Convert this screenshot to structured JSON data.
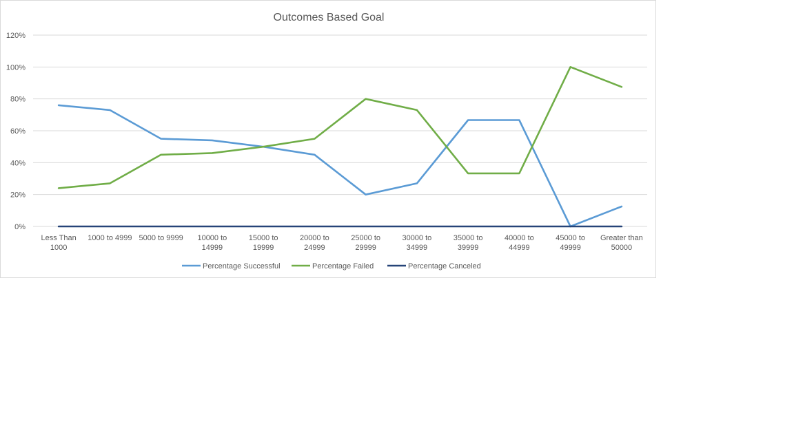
{
  "chart_data": {
    "type": "line",
    "title": "Outcomes Based Goal",
    "xlabel": "",
    "ylabel": "",
    "categories": [
      [
        "Less Than",
        "1000"
      ],
      [
        "1000 to 4999"
      ],
      [
        "5000 to 9999"
      ],
      [
        "10000 to",
        "14999"
      ],
      [
        "15000 to",
        "19999"
      ],
      [
        "20000 to",
        "24999"
      ],
      [
        "25000 to",
        "29999"
      ],
      [
        "30000 to",
        "34999"
      ],
      [
        "35000 to",
        "39999"
      ],
      [
        "40000 to",
        "44999"
      ],
      [
        "45000 to",
        "49999"
      ],
      [
        "Greater than",
        "50000"
      ]
    ],
    "ylim": [
      0,
      1.2
    ],
    "yticks": [
      {
        "value": 0,
        "label": "0%"
      },
      {
        "value": 0.2,
        "label": "20%"
      },
      {
        "value": 0.4,
        "label": "40%"
      },
      {
        "value": 0.6,
        "label": "60%"
      },
      {
        "value": 0.8,
        "label": "80%"
      },
      {
        "value": 1.0,
        "label": "100%"
      },
      {
        "value": 1.2,
        "label": "120%"
      }
    ],
    "grid": true,
    "legend_position": "bottom",
    "series": [
      {
        "name": "Percentage Successful",
        "color": "#5b9bd5",
        "values": [
          0.76,
          0.73,
          0.55,
          0.54,
          0.5,
          0.45,
          0.2,
          0.27,
          0.667,
          0.667,
          0.0,
          0.125
        ]
      },
      {
        "name": "Percentage Failed",
        "color": "#70ad47",
        "values": [
          0.24,
          0.27,
          0.45,
          0.46,
          0.5,
          0.55,
          0.8,
          0.73,
          0.333,
          0.333,
          1.0,
          0.875
        ]
      },
      {
        "name": "Percentage Canceled",
        "color": "#264478",
        "values": [
          0,
          0,
          0,
          0,
          0,
          0,
          0,
          0,
          0,
          0,
          0,
          0
        ]
      }
    ]
  }
}
